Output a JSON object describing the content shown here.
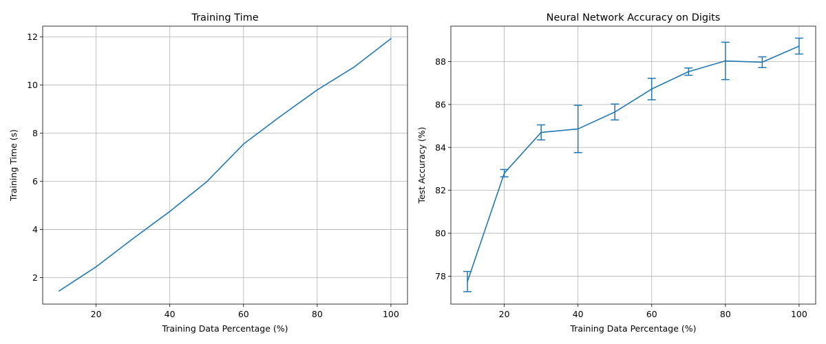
{
  "chart_data": [
    {
      "type": "line",
      "title": "Training Time",
      "xlabel": "Training Data Percentage (%)",
      "ylabel": "Training Time (s)",
      "xlim": [
        5.5,
        104.5
      ],
      "ylim": [
        0.9,
        12.45
      ],
      "xticks": [
        "20",
        "40",
        "60",
        "80",
        "100"
      ],
      "yticks": [
        "2",
        "4",
        "6",
        "8",
        "10",
        "12"
      ],
      "grid": true,
      "color": "#1f77b4",
      "x": [
        10,
        20,
        30,
        40,
        50,
        60,
        70,
        80,
        90,
        100
      ],
      "y": [
        1.45,
        2.45,
        3.62,
        4.75,
        5.98,
        7.55,
        8.7,
        9.8,
        10.75,
        11.93
      ]
    },
    {
      "type": "line",
      "title": "Neural Network Accuracy on Digits",
      "xlabel": "Training Data Percentage (%)",
      "ylabel": "Test Accuracy (%)",
      "xlim": [
        5.5,
        104.5
      ],
      "ylim": [
        76.7,
        89.65
      ],
      "xticks": [
        "20",
        "40",
        "60",
        "80",
        "100"
      ],
      "yticks": [
        "78",
        "80",
        "82",
        "84",
        "86",
        "88"
      ],
      "grid": true,
      "color": "#1f77b4",
      "x": [
        10,
        20,
        30,
        40,
        50,
        60,
        70,
        80,
        90,
        100
      ],
      "y": [
        77.75,
        82.8,
        84.7,
        84.86,
        85.65,
        86.72,
        87.53,
        88.03,
        87.97,
        88.72
      ],
      "error": [
        0.47,
        0.17,
        0.35,
        1.1,
        0.37,
        0.5,
        0.17,
        0.87,
        0.25,
        0.37
      ]
    }
  ]
}
